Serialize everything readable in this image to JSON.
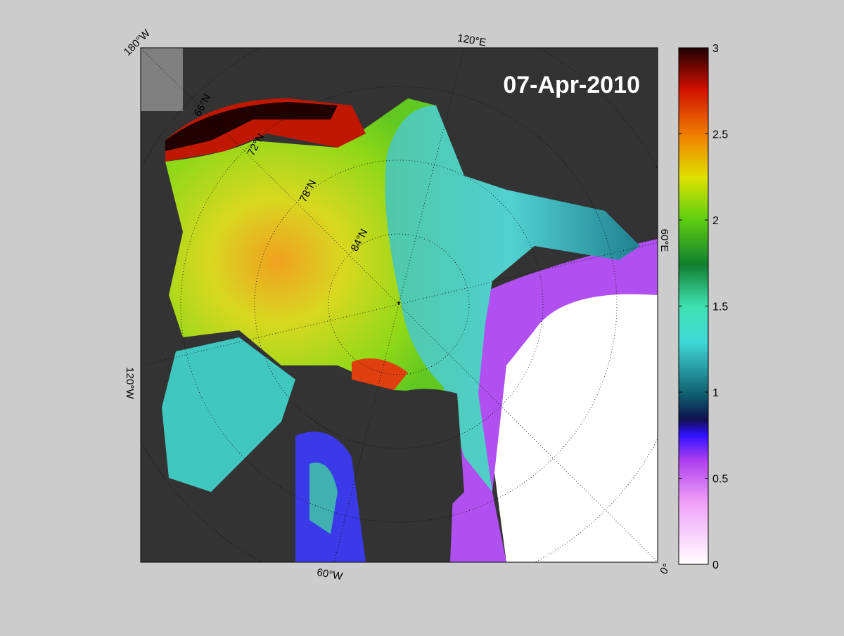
{
  "map": {
    "date": "07-Apr-2010",
    "longitude_labels": [
      "180°W",
      "120°E",
      "60°E",
      "0°",
      "60°W",
      "120°W"
    ],
    "latitude_labels": [
      "66°N",
      "72°N",
      "78°N",
      "84°N"
    ]
  },
  "colorbar": {
    "lim": [
      0,
      3
    ],
    "ticks": [
      0,
      0.5,
      1,
      1.5,
      2,
      2.5,
      3
    ]
  }
}
